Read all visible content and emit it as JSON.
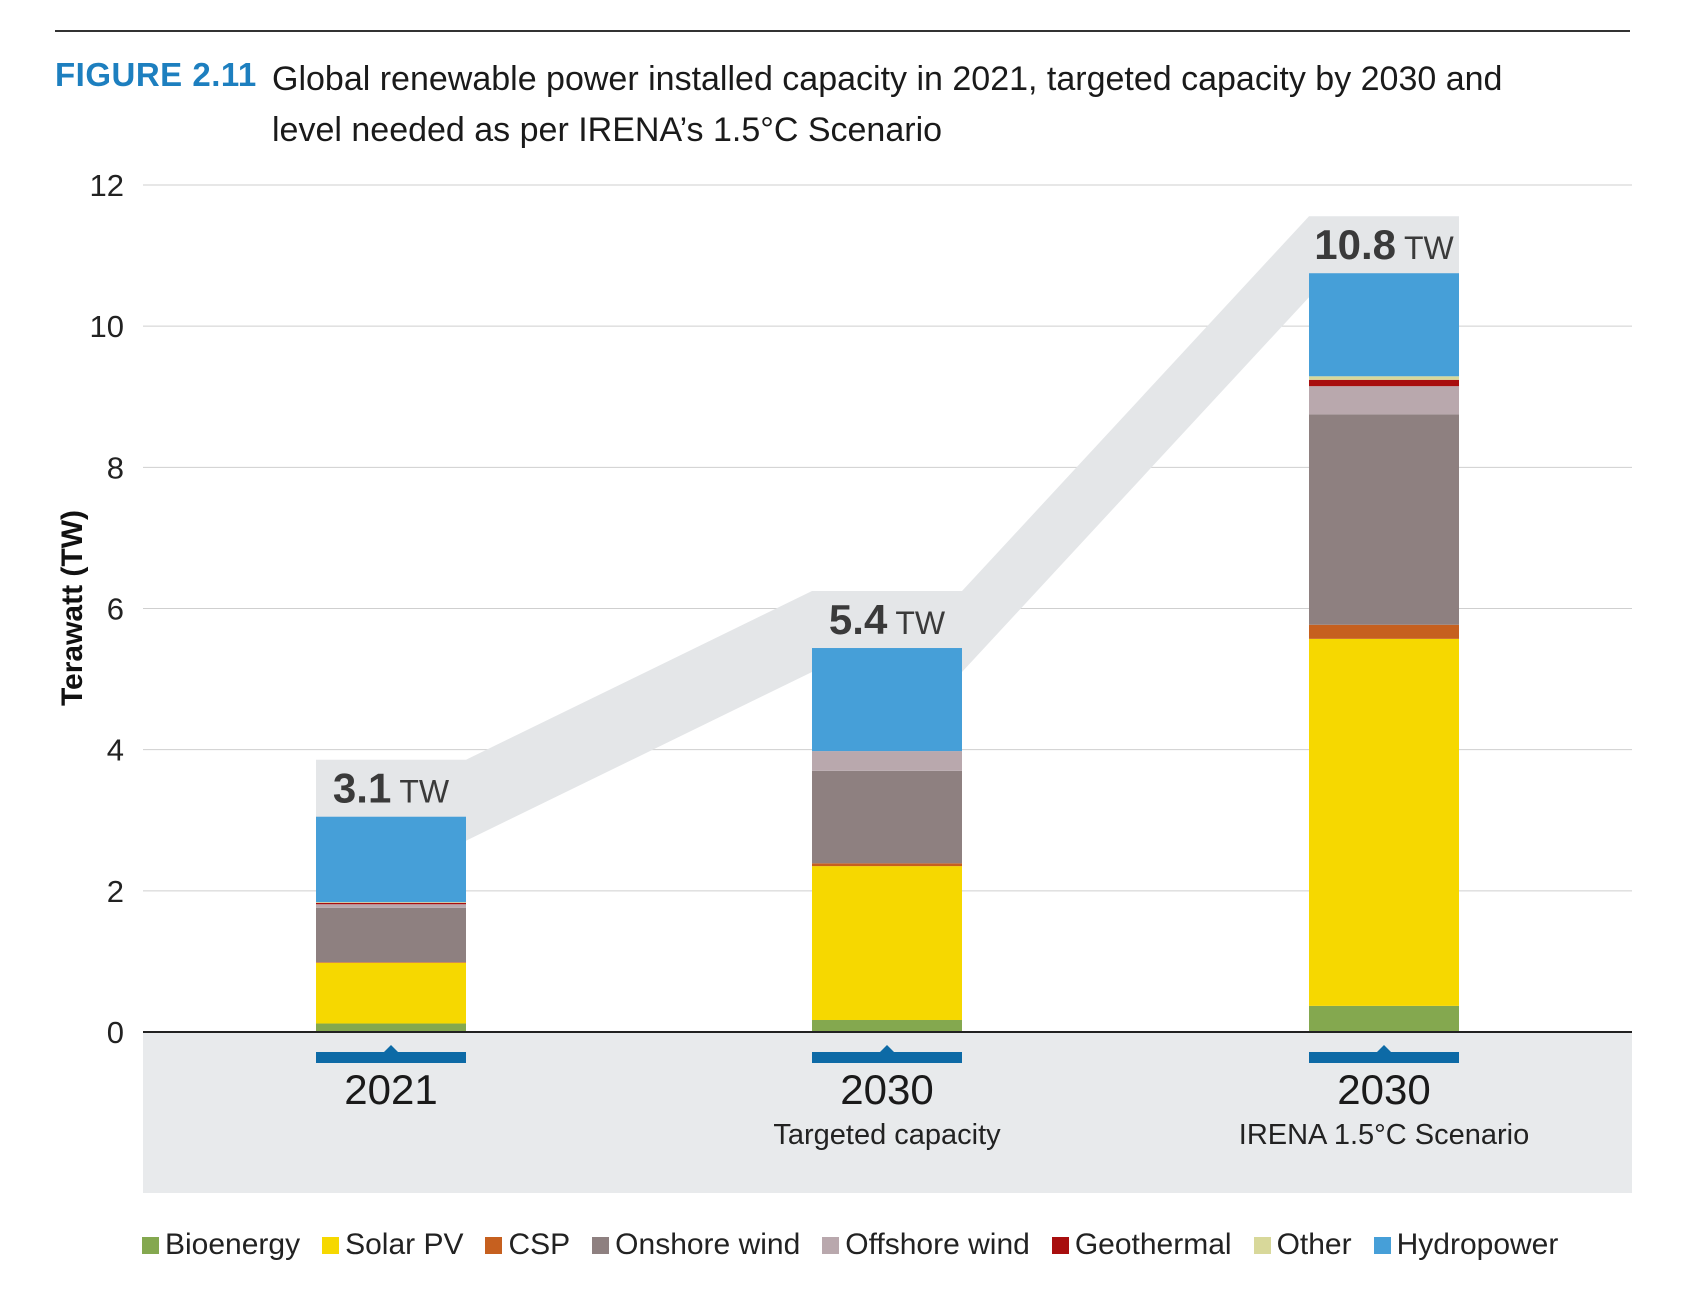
{
  "figure": {
    "label": "FIGURE 2.11",
    "title": "Global renewable power installed capacity in 2021, targeted capacity by 2030 and level needed as per IRENA’s 1.5°C Scenario"
  },
  "chart_data": {
    "type": "bar",
    "stacked": true,
    "ylabel": "Terawatt (TW)",
    "ylim": [
      0,
      12
    ],
    "yticks": [
      "0",
      "2",
      "4",
      "6",
      "8",
      "10",
      "12"
    ],
    "grid": true,
    "legend_position": "bottom",
    "categories": [
      {
        "label": "2021",
        "sublabel": ""
      },
      {
        "label": "2030",
        "sublabel": "Targeted capacity"
      },
      {
        "label": "2030",
        "sublabel": "IRENA 1.5°C Scenario"
      }
    ],
    "totals": [
      {
        "value": "3.1",
        "unit": "TW"
      },
      {
        "value": "5.4",
        "unit": "TW"
      },
      {
        "value": "10.8",
        "unit": "TW"
      }
    ],
    "series": [
      {
        "name": "Bioenergy",
        "color": "#84a84f",
        "values": [
          0.12,
          0.17,
          0.37
        ]
      },
      {
        "name": "Solar PV",
        "color": "#f6d800",
        "values": [
          0.86,
          2.18,
          5.2
        ]
      },
      {
        "name": "CSP",
        "color": "#c6601f",
        "values": [
          0.01,
          0.04,
          0.2
        ]
      },
      {
        "name": "Onshore wind",
        "color": "#8e8080",
        "values": [
          0.77,
          1.31,
          2.98
        ]
      },
      {
        "name": "Offshore wind",
        "color": "#b9a8ad",
        "values": [
          0.05,
          0.28,
          0.4
        ]
      },
      {
        "name": "Geothermal",
        "color": "#a80e0e",
        "values": [
          0.02,
          0.0,
          0.09
        ]
      },
      {
        "name": "Other",
        "color": "#d8d89a",
        "values": [
          0.01,
          0.0,
          0.05
        ]
      },
      {
        "name": "Hydropower",
        "color": "#469fd8",
        "values": [
          1.21,
          1.46,
          1.46
        ]
      }
    ]
  }
}
